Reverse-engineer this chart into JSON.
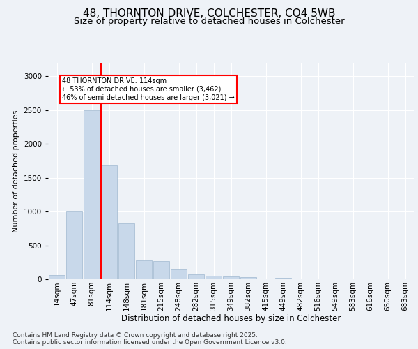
{
  "title_line1": "48, THORNTON DRIVE, COLCHESTER, CO4 5WB",
  "title_line2": "Size of property relative to detached houses in Colchester",
  "xlabel": "Distribution of detached houses by size in Colchester",
  "ylabel": "Number of detached properties",
  "categories": [
    "14sqm",
    "47sqm",
    "81sqm",
    "114sqm",
    "148sqm",
    "181sqm",
    "215sqm",
    "248sqm",
    "282sqm",
    "315sqm",
    "349sqm",
    "382sqm",
    "415sqm",
    "449sqm",
    "482sqm",
    "516sqm",
    "549sqm",
    "583sqm",
    "616sqm",
    "650sqm",
    "683sqm"
  ],
  "values": [
    60,
    1000,
    2500,
    1680,
    830,
    280,
    270,
    140,
    70,
    50,
    40,
    30,
    0,
    25,
    0,
    0,
    0,
    0,
    0,
    0,
    0
  ],
  "bar_color": "#c8d8ea",
  "bar_edge_color": "#a0b8d0",
  "vline_color": "red",
  "annotation_text": "48 THORNTON DRIVE: 114sqm\n← 53% of detached houses are smaller (3,462)\n46% of semi-detached houses are larger (3,021) →",
  "ylim": [
    0,
    3200
  ],
  "yticks": [
    0,
    500,
    1000,
    1500,
    2000,
    2500,
    3000
  ],
  "background_color": "#eef2f7",
  "plot_bg_color": "#eef2f7",
  "footer_text": "Contains HM Land Registry data © Crown copyright and database right 2025.\nContains public sector information licensed under the Open Government Licence v3.0.",
  "title_fontsize": 11,
  "subtitle_fontsize": 9.5,
  "xlabel_fontsize": 8.5,
  "ylabel_fontsize": 8,
  "tick_fontsize": 7.5,
  "footer_fontsize": 6.5
}
